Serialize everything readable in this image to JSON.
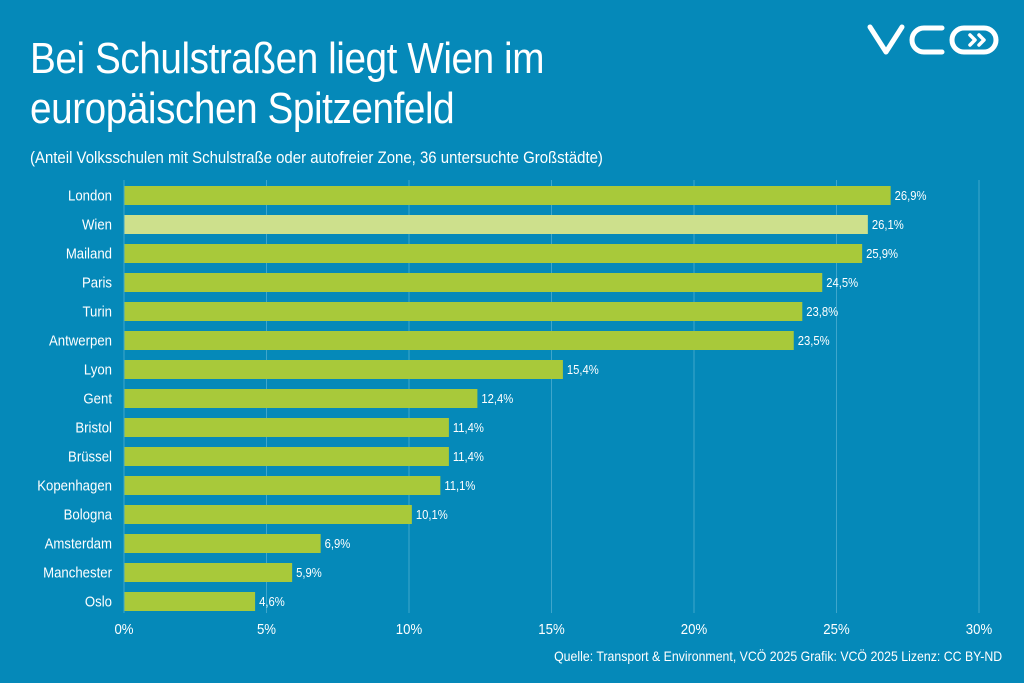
{
  "logo_text": "VCÖ",
  "chart_data": {
    "type": "bar",
    "orientation": "horizontal",
    "title": "Bei Schulstraßen liegt Wien im europäischen Spitzenfeld",
    "title_lines": [
      "Bei Schulstraßen liegt Wien im",
      "europäischen Spitzenfeld"
    ],
    "subtitle": "(Anteil Volksschulen mit Schulstraße oder autofreier Zone, 36 untersuchte Großstädte)",
    "categories": [
      "London",
      "Wien",
      "Mailand",
      "Paris",
      "Turin",
      "Antwerpen",
      "Lyon",
      "Gent",
      "Bristol",
      "Brüssel",
      "Kopenhagen",
      "Bologna",
      "Amsterdam",
      "Manchester",
      "Oslo"
    ],
    "values": [
      26.9,
      26.1,
      25.9,
      24.5,
      23.8,
      23.5,
      15.4,
      12.4,
      11.4,
      11.4,
      11.1,
      10.1,
      6.9,
      5.9,
      4.6
    ],
    "data_labels": [
      "26,9%",
      "26,1%",
      "25,9%",
      "24,5%",
      "23,8%",
      "23,5%",
      "15,4%",
      "12,4%",
      "11,4%",
      "11,4%",
      "11,1%",
      "10,1%",
      "6,9%",
      "5,9%",
      "4,6%"
    ],
    "highlight": "Wien",
    "xlim": [
      0,
      30
    ],
    "xticks": [
      0,
      5,
      10,
      15,
      20,
      25,
      30
    ],
    "xtick_labels": [
      "0%",
      "5%",
      "10%",
      "15%",
      "20%",
      "25%",
      "30%"
    ],
    "grid": true,
    "colors": {
      "background": "#0589b9",
      "bar": "#a8c93a",
      "highlight": "#cde08c",
      "grid": "#3fa6cc"
    }
  },
  "source": "Quelle: Transport & Environment, VCÖ 2025 Grafik: VCÖ 2025 Lizenz: CC BY-ND"
}
